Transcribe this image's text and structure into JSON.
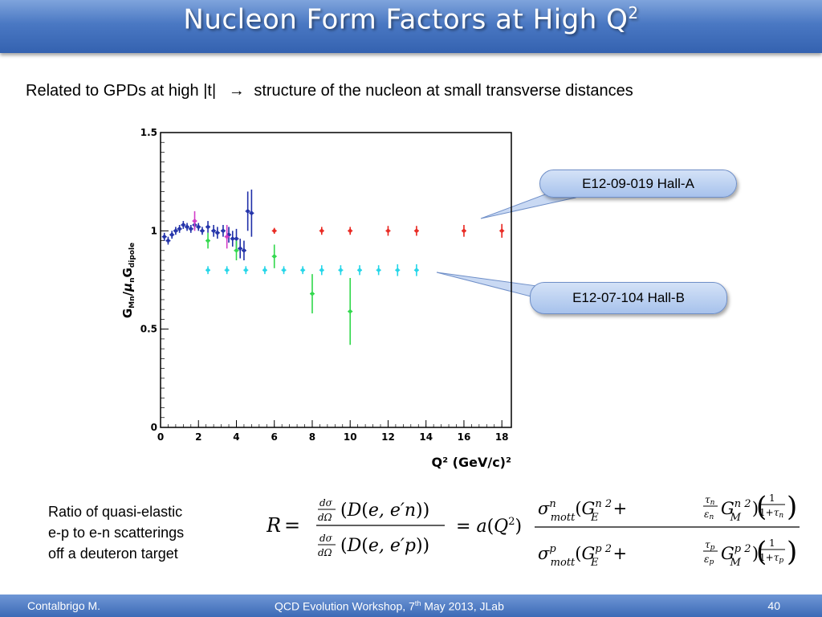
{
  "slide": {
    "title_main": "Nucleon Form Factors at High Q",
    "title_sup": "2",
    "subtitle_a": "Related to GPDs at high |t|",
    "subtitle_arrow": "→",
    "subtitle_b": "structure of the nucleon at small transverse distances"
  },
  "callouts": {
    "hall_a": "E12-09-019 Hall-A",
    "hall_b": "E12-07-104  Hall-B"
  },
  "ratio_text": {
    "line1": "Ratio of quasi-elastic",
    "line2": "e-p to e-n scatterings",
    "line3": "off a deuteron target"
  },
  "footer": {
    "author": "Contalbrigo M.",
    "event_a": "QCD Evolution Workshop, 7",
    "event_sup": "th",
    "event_b": " May 2013, JLab",
    "page": "40"
  },
  "colors": {
    "title_bar": "#4a78c3",
    "existing_data": "#1f2fa8",
    "existing_magenta": "#d23cc8",
    "hall_a_projection": "#e8261f",
    "hall_b_projection": "#22d5e8",
    "clas_green": "#2fd84a"
  },
  "chart_data": {
    "type": "scatter",
    "title": "",
    "xlabel": "Q² (GeV/c)²",
    "ylabel": "G_Mn/μ_nG_dipole",
    "xlim": [
      0,
      18.5
    ],
    "ylim": [
      0,
      1.5
    ],
    "x_ticks": [
      "0",
      "2",
      "4",
      "6",
      "8",
      "10",
      "12",
      "14",
      "16",
      "18"
    ],
    "y_ticks": [
      "0",
      "0.5",
      "1",
      "1.5"
    ],
    "grid": false,
    "series": [
      {
        "color": "#1f2fa8",
        "x": [
          0.2,
          0.4,
          0.6,
          0.8,
          1.0,
          1.2,
          1.4,
          1.6,
          1.8,
          2.0,
          2.2,
          2.5,
          2.8,
          3.0,
          3.3,
          3.6,
          3.8,
          4.0,
          4.2,
          4.4,
          4.6,
          4.8
        ],
        "y": [
          0.97,
          0.95,
          0.98,
          1.0,
          1.01,
          1.03,
          1.02,
          1.01,
          1.03,
          1.02,
          1.0,
          1.02,
          1.0,
          0.99,
          1.0,
          0.98,
          0.96,
          0.96,
          0.91,
          0.9,
          1.1,
          1.09
        ],
        "err": [
          0.02,
          0.02,
          0.02,
          0.02,
          0.02,
          0.02,
          0.02,
          0.02,
          0.02,
          0.02,
          0.02,
          0.03,
          0.03,
          0.03,
          0.03,
          0.04,
          0.04,
          0.05,
          0.05,
          0.05,
          0.1,
          0.12
        ]
      },
      {
        "color": "#d23cc8",
        "x": [
          1.8,
          3.5
        ],
        "y": [
          1.05,
          0.97
        ],
        "err": [
          0.05,
          0.06
        ]
      },
      {
        "color": "#2fd84a",
        "x": [
          2.5,
          4.0,
          6.0,
          8.0,
          10.0
        ],
        "y": [
          0.95,
          0.9,
          0.87,
          0.68,
          0.59
        ],
        "err": [
          0.04,
          0.05,
          0.06,
          0.1,
          0.17
        ]
      },
      {
        "color": "#e8261f",
        "x": [
          6.0,
          8.5,
          10.0,
          12.0,
          13.5,
          16.0,
          18.0
        ],
        "y": [
          1.0,
          1.0,
          1.0,
          1.0,
          1.0,
          1.0,
          1.0
        ],
        "err": [
          0.015,
          0.02,
          0.02,
          0.025,
          0.025,
          0.03,
          0.035
        ]
      },
      {
        "color": "#22d5e8",
        "x": [
          2.5,
          3.5,
          4.5,
          5.5,
          6.5,
          7.5,
          8.5,
          9.5,
          10.5,
          11.5,
          12.5,
          13.5
        ],
        "y": [
          0.8,
          0.8,
          0.8,
          0.8,
          0.8,
          0.8,
          0.8,
          0.8,
          0.8,
          0.8,
          0.8,
          0.8
        ],
        "err": [
          0.02,
          0.02,
          0.02,
          0.02,
          0.02,
          0.02,
          0.025,
          0.025,
          0.025,
          0.025,
          0.03,
          0.03
        ]
      }
    ]
  }
}
